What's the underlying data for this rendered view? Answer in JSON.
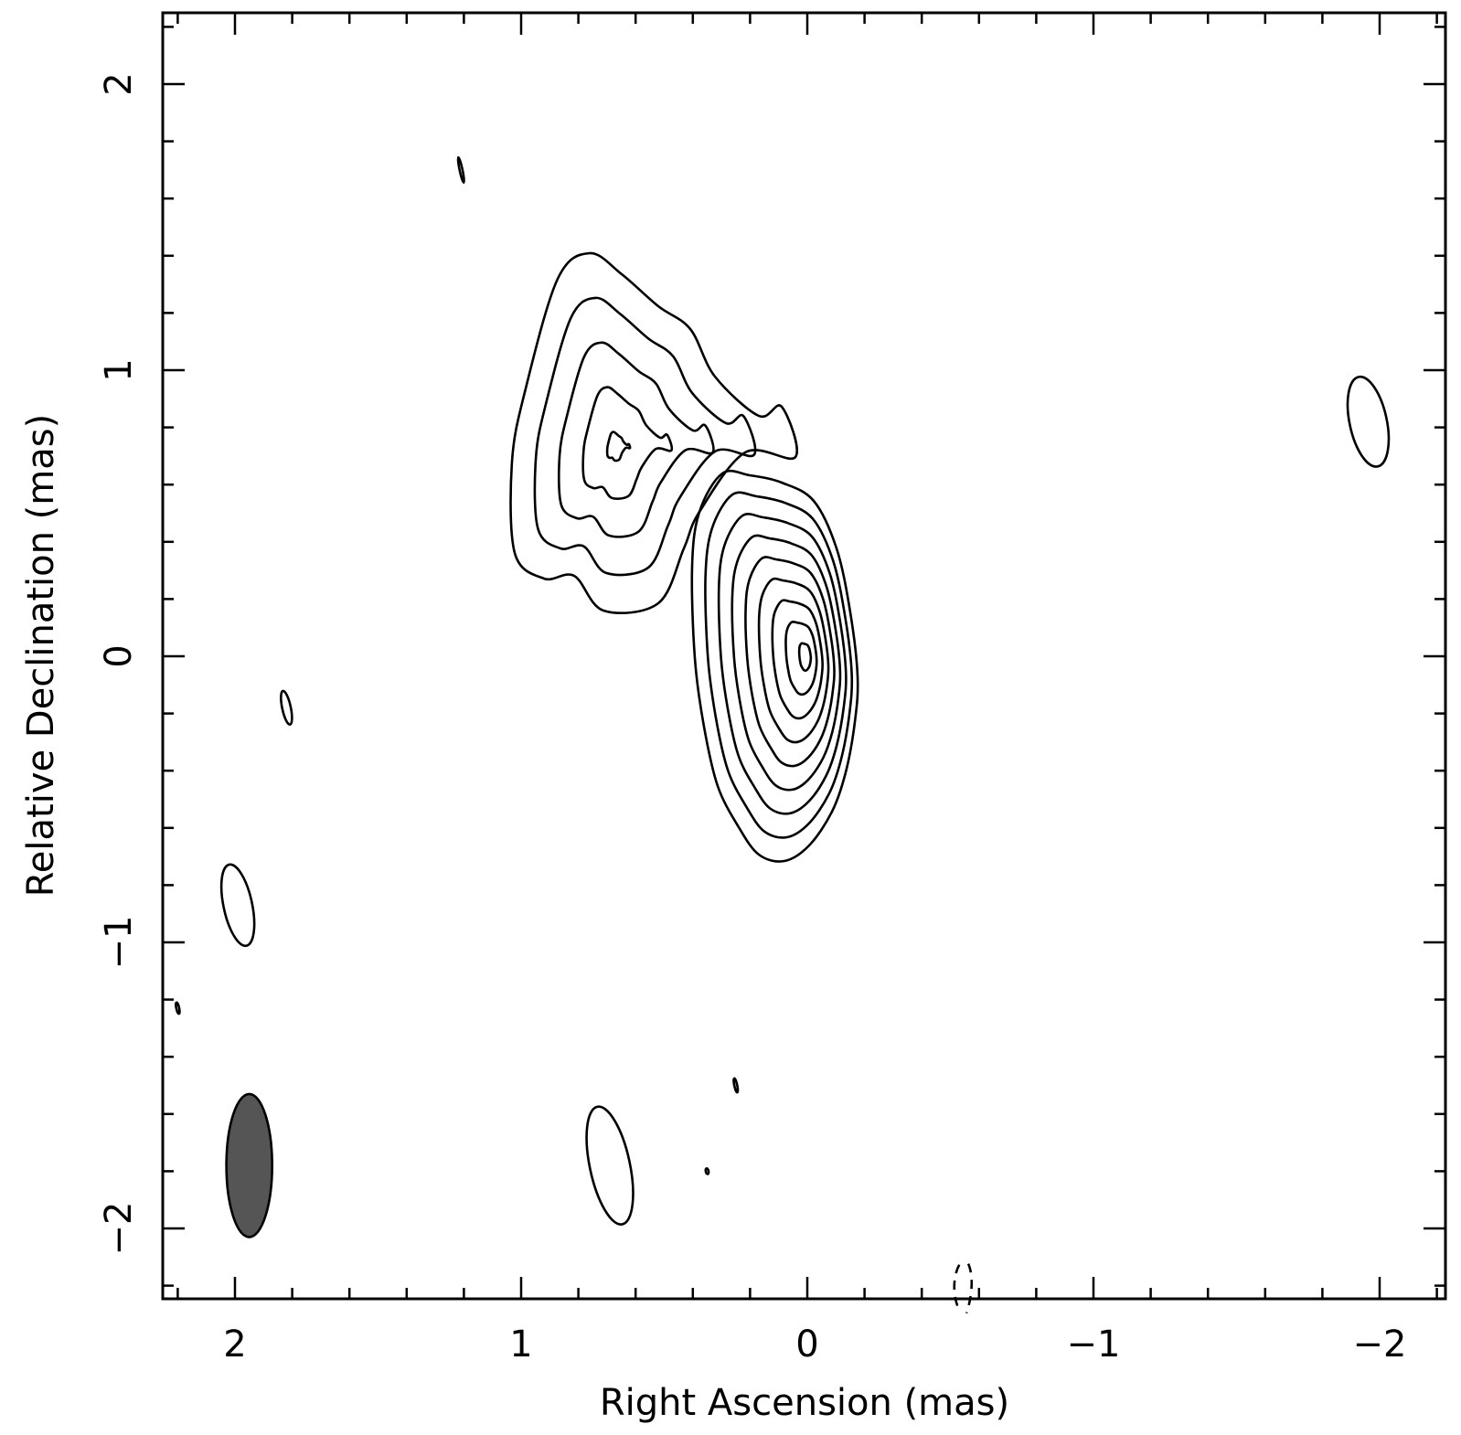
{
  "chart_data": {
    "type": "contour",
    "xlabel": "Right Ascension  (mas)",
    "ylabel": "Relative Declination  (mas)",
    "xlim": [
      2.25,
      -2.25
    ],
    "ylim": [
      -2.25,
      2.25
    ],
    "x_reversed": true,
    "x_ticks": [
      {
        "value": 2,
        "label": "2"
      },
      {
        "value": 1,
        "label": "1"
      },
      {
        "value": 0,
        "label": "0"
      },
      {
        "value": -1,
        "label": "−1"
      },
      {
        "value": -2,
        "label": "−2"
      }
    ],
    "y_ticks": [
      {
        "value": 2,
        "label": "2"
      },
      {
        "value": 1,
        "label": "1"
      },
      {
        "value": 0,
        "label": "0"
      },
      {
        "value": -1,
        "label": "−1"
      },
      {
        "value": -2,
        "label": "−2"
      }
    ],
    "minor_tick_step": 0.2,
    "core_component": {
      "center": [
        0.0,
        0.0
      ],
      "levels": 9,
      "peak": [
        0.0,
        0.0
      ],
      "extent_ra": [
        -0.24,
        0.06
      ],
      "extent_dec": [
        -0.77,
        0.62
      ]
    },
    "jet_component": {
      "peak": [
        0.67,
        0.73
      ],
      "levels": 5,
      "extent_ra": [
        0.06,
        1.02
      ],
      "extent_dec": [
        -0.15,
        1.41
      ]
    },
    "isolated_contours": [
      {
        "center": [
          -1.96,
          0.82
        ],
        "width": 0.13,
        "height": 0.32
      },
      {
        "center": [
          1.99,
          -0.87
        ],
        "width": 0.1,
        "height": 0.29
      },
      {
        "center": [
          0.69,
          -1.78
        ],
        "width": 0.14,
        "height": 0.42
      },
      {
        "center": [
          1.82,
          -0.18
        ],
        "width": 0.03,
        "height": 0.12
      },
      {
        "center": [
          1.21,
          1.7
        ],
        "width": 0.01,
        "height": 0.09
      },
      {
        "center": [
          0.25,
          -1.5
        ],
        "width": 0.01,
        "height": 0.05
      },
      {
        "center": [
          2.2,
          -1.23
        ],
        "width": 0.01,
        "height": 0.04
      },
      {
        "center": [
          0.35,
          -1.8
        ],
        "width": 0.01,
        "height": 0.02
      }
    ],
    "negative_contour": {
      "center": [
        -0.55,
        -2.2
      ]
    },
    "beam": {
      "center": [
        1.95,
        -1.78
      ],
      "major_mas": 0.5,
      "minor_mas": 0.16,
      "position_angle_deg": 0,
      "fill": "#555555"
    },
    "colors": {
      "contour": "#000000",
      "beam": "#555555",
      "background": "#ffffff"
    }
  }
}
